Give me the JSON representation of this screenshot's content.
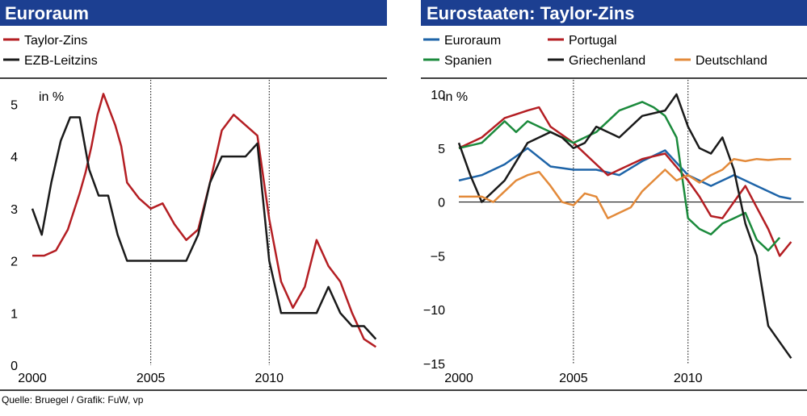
{
  "source": "Quelle: Bruegel / Grafik: FuW, vp",
  "colors": {
    "title_bar": "#1c3f91",
    "rule": "#000000",
    "zero_line": "#000000",
    "vgrid": "#000000"
  },
  "chart_data": [
    {
      "type": "line",
      "title": "Euroraum",
      "ylabel": "in %",
      "xlim": [
        2000,
        2014.9
      ],
      "ylim": [
        0,
        5.5
      ],
      "yticks": [
        0,
        1,
        2,
        3,
        4,
        5
      ],
      "ytick_labels": [
        "0",
        "1",
        "2",
        "3",
        "4",
        "5"
      ],
      "xticks": [
        2000,
        2005,
        2010
      ],
      "xtick_labels": [
        "2000",
        "2005",
        "2010"
      ],
      "vgrid": [
        2005,
        2010
      ],
      "zero_line": false,
      "series": [
        {
          "name": "Taylor-Zins",
          "color": "#b41e23",
          "x": [
            2000,
            2000.5,
            2001,
            2001.5,
            2002,
            2002.25,
            2002.5,
            2002.75,
            2003,
            2003.25,
            2003.5,
            2003.75,
            2004,
            2004.5,
            2005,
            2005.5,
            2006,
            2006.5,
            2007,
            2007.5,
            2008,
            2008.5,
            2009,
            2009.5,
            2010,
            2010.5,
            2011,
            2011.5,
            2012,
            2012.5,
            2013,
            2013.5,
            2014,
            2014.5
          ],
          "y": [
            2.1,
            2.1,
            2.2,
            2.6,
            3.3,
            3.7,
            4.2,
            4.8,
            5.2,
            4.9,
            4.6,
            4.2,
            3.5,
            3.2,
            3.0,
            3.1,
            2.7,
            2.4,
            2.6,
            3.5,
            4.5,
            4.8,
            4.6,
            4.4,
            2.8,
            1.6,
            1.1,
            1.5,
            2.4,
            1.9,
            1.6,
            1.0,
            0.5,
            0.35
          ]
        },
        {
          "name": "EZB-Leitzins",
          "color": "#1a1a1a",
          "x": [
            2000,
            2000.4,
            2000.8,
            2001.2,
            2001.6,
            2002,
            2002.4,
            2002.8,
            2003.2,
            2003.6,
            2004,
            2004.5,
            2005,
            2005.5,
            2006,
            2006.5,
            2007,
            2007.5,
            2008,
            2008.5,
            2009,
            2009.5,
            2010,
            2010.5,
            2011,
            2011.5,
            2012,
            2012.5,
            2013,
            2013.5,
            2014,
            2014.5
          ],
          "y": [
            3.0,
            2.5,
            3.5,
            4.3,
            4.75,
            4.75,
            3.75,
            3.25,
            3.25,
            2.5,
            2.0,
            2.0,
            2.0,
            2.0,
            2.0,
            2.0,
            2.5,
            3.5,
            4.0,
            4.0,
            4.0,
            4.25,
            2.0,
            1.0,
            1.0,
            1.0,
            1.0,
            1.5,
            1.0,
            0.75,
            0.75,
            0.5
          ]
        }
      ]
    },
    {
      "type": "line",
      "title": "Eurostaaten: Taylor-Zins",
      "ylabel": "in %",
      "xlim": [
        2000,
        2015.05
      ],
      "ylim": [
        -15,
        11.5
      ],
      "yticks": [
        -15,
        -10,
        -5,
        0,
        5,
        10
      ],
      "ytick_labels": [
        "−15",
        "−10",
        "−5",
        "0",
        "5",
        "10"
      ],
      "xticks": [
        2000,
        2005,
        2010
      ],
      "xtick_labels": [
        "2000",
        "2005",
        "2010"
      ],
      "vgrid": [
        2005,
        2010
      ],
      "zero_line": true,
      "series": [
        {
          "name": "Euroraum",
          "color": "#1e64a8",
          "x": [
            2000,
            2001,
            2002,
            2003,
            2004,
            2005,
            2006,
            2007,
            2008,
            2009,
            2010,
            2011,
            2012,
            2013,
            2014,
            2014.5
          ],
          "y": [
            2.0,
            2.5,
            3.5,
            5.0,
            3.3,
            3.0,
            3.0,
            2.5,
            3.8,
            4.8,
            2.5,
            1.5,
            2.5,
            1.5,
            0.5,
            0.3
          ]
        },
        {
          "name": "Portugal",
          "color": "#b41e23",
          "x": [
            2000,
            2001,
            2002,
            2003,
            2003.5,
            2004,
            2005,
            2006,
            2006.5,
            2007,
            2008,
            2009,
            2010,
            2010.5,
            2011,
            2011.5,
            2012,
            2012.5,
            2013,
            2013.5,
            2014,
            2014.5
          ],
          "y": [
            5.0,
            6.0,
            7.8,
            8.5,
            8.8,
            7.0,
            5.5,
            3.5,
            2.5,
            3.0,
            4.0,
            4.5,
            2.0,
            0.5,
            -1.3,
            -1.5,
            0.0,
            1.5,
            -0.5,
            -2.5,
            -5.0,
            -3.7
          ]
        },
        {
          "name": "Spanien",
          "color": "#1b8a3c",
          "x": [
            2000,
            2001,
            2002,
            2002.5,
            2003,
            2003.5,
            2004,
            2005,
            2006,
            2007,
            2008,
            2008.5,
            2009,
            2009.5,
            2010,
            2010.5,
            2011,
            2011.5,
            2012,
            2012.5,
            2013,
            2013.5,
            2014
          ],
          "y": [
            5.0,
            5.5,
            7.5,
            6.5,
            7.5,
            7.0,
            6.5,
            5.5,
            6.5,
            8.5,
            9.3,
            8.8,
            8.0,
            6.0,
            -1.5,
            -2.5,
            -3.0,
            -2.0,
            -1.5,
            -1.0,
            -3.5,
            -4.5,
            -3.3
          ]
        },
        {
          "name": "Griechenland",
          "color": "#1a1a1a",
          "x": [
            2000,
            2000.5,
            2001,
            2001.5,
            2002,
            2003,
            2004,
            2004.5,
            2005,
            2005.5,
            2006,
            2007,
            2008,
            2009,
            2009.5,
            2010,
            2010.5,
            2011,
            2011.5,
            2012,
            2012.5,
            2013,
            2013.5,
            2014,
            2014.5
          ],
          "y": [
            5.5,
            2.5,
            0.0,
            1.0,
            2.0,
            5.5,
            6.5,
            6.0,
            5.0,
            5.5,
            7.0,
            6.0,
            8.0,
            8.5,
            10.0,
            7.0,
            5.0,
            4.5,
            6.0,
            3.0,
            -2.0,
            -5.0,
            -11.5,
            -13.0,
            -14.5
          ]
        },
        {
          "name": "Deutschland",
          "color": "#e38a3a",
          "x": [
            2000,
            2001,
            2001.5,
            2002,
            2002.5,
            2003,
            2003.5,
            2004,
            2004.5,
            2005,
            2005.5,
            2006,
            2006.5,
            2007,
            2007.5,
            2008,
            2008.5,
            2009,
            2009.5,
            2010,
            2010.5,
            2011,
            2011.5,
            2012,
            2012.5,
            2013,
            2013.5,
            2014,
            2014.5
          ],
          "y": [
            0.5,
            0.5,
            0.0,
            1.0,
            2.0,
            2.5,
            2.8,
            1.5,
            0.0,
            -0.3,
            0.8,
            0.5,
            -1.5,
            -1.0,
            -0.5,
            1.0,
            2.0,
            3.0,
            2.0,
            2.5,
            1.8,
            2.5,
            3.0,
            4.0,
            3.8,
            4.0,
            3.9,
            4.0,
            4.0
          ]
        }
      ]
    }
  ]
}
